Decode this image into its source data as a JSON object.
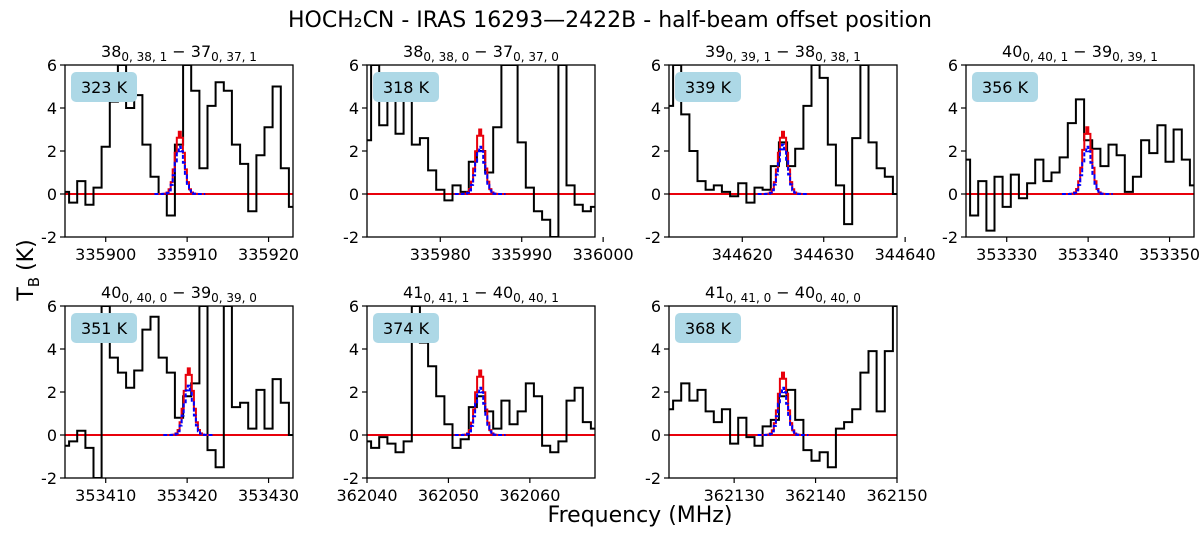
{
  "figure": {
    "title": "HOCH₂CN - IRAS 16293—2422B - half-beam offset position",
    "xlabel": "Frequency (MHz)",
    "ylabel": "T",
    "ylabel_sub": "B",
    "ylabel_unit": "(K)"
  },
  "colors": {
    "observed": "#000000",
    "model_red": "#e8000b",
    "model_blue": "#0000ff",
    "zero_line": "#e8000b",
    "badge": "#add8e6"
  },
  "chart_data": [
    {
      "type": "line",
      "transition": {
        "j_up": "38",
        "sub_up": "0, 38, 1",
        "j_lo": "37",
        "sub_lo": "0, 37, 1"
      },
      "energy_label": "323 K",
      "xlim": [
        335895,
        335923
      ],
      "ylim": [
        -2,
        6
      ],
      "xticks": [
        335900,
        335910,
        335920
      ],
      "yticks": [
        -2,
        0,
        2,
        4,
        6
      ],
      "center": 335909.1,
      "red_peak": 2.9,
      "blue_peak": 2.2,
      "observed": [
        [
          335895,
          0.1
        ],
        [
          335896,
          -0.4
        ],
        [
          335897,
          0.6
        ],
        [
          335898,
          -0.5
        ],
        [
          335899,
          0.3
        ],
        [
          335900,
          2.2
        ],
        [
          335901,
          4.3
        ],
        [
          335902,
          6.0
        ],
        [
          335903,
          4.0
        ],
        [
          335904,
          4.6
        ],
        [
          335905,
          2.3
        ],
        [
          335906,
          0.8
        ],
        [
          335907,
          0.0
        ],
        [
          335908,
          -1.0
        ],
        [
          335909,
          2.3
        ],
        [
          335910,
          6.0
        ],
        [
          335911,
          4.8
        ],
        [
          335912,
          1.2
        ],
        [
          335913,
          4.1
        ],
        [
          335914,
          5.2
        ],
        [
          335915,
          4.8
        ],
        [
          335916,
          2.3
        ],
        [
          335917,
          1.4
        ],
        [
          335918,
          -0.8
        ],
        [
          335919,
          1.8
        ],
        [
          335920,
          3.1
        ],
        [
          335921,
          5.0
        ],
        [
          335922,
          1.2
        ],
        [
          335923,
          -0.6
        ]
      ]
    },
    {
      "type": "line",
      "transition": {
        "j_up": "38",
        "sub_up": "0, 38, 0",
        "j_lo": "37",
        "sub_lo": "0, 37, 0"
      },
      "energy_label": "318 K",
      "xlim": [
        335971,
        335999
      ],
      "ylim": [
        -2,
        6
      ],
      "xticks": [
        335980,
        335990,
        336000
      ],
      "yticks": [
        -2,
        0,
        2,
        4,
        6
      ],
      "center": 335984.9,
      "red_peak": 3.0,
      "blue_peak": 2.2,
      "observed": [
        [
          335971,
          2.5
        ],
        [
          335972,
          6.0
        ],
        [
          335973,
          3.2
        ],
        [
          335974,
          4.5
        ],
        [
          335975,
          2.8
        ],
        [
          335976,
          4.6
        ],
        [
          335977,
          2.3
        ],
        [
          335978,
          2.6
        ],
        [
          335979,
          1.1
        ],
        [
          335980,
          0.2
        ],
        [
          335981,
          -0.3
        ],
        [
          335982,
          0.4
        ],
        [
          335983,
          0.1
        ],
        [
          335984,
          1.5
        ],
        [
          335985,
          2.0
        ],
        [
          335986,
          1.0
        ],
        [
          335987,
          3.1
        ],
        [
          335988,
          6.0
        ],
        [
          335989,
          6.0
        ],
        [
          335990,
          2.4
        ],
        [
          335991,
          0.3
        ],
        [
          335992,
          -0.8
        ],
        [
          335993,
          -1.2
        ],
        [
          335994,
          -2.0
        ],
        [
          335995,
          6.0
        ],
        [
          335996,
          0.4
        ],
        [
          335997,
          -0.5
        ],
        [
          335998,
          -0.8
        ],
        [
          335999,
          -0.6
        ]
      ]
    },
    {
      "type": "line",
      "transition": {
        "j_up": "39",
        "sub_up": "0, 39, 1",
        "j_lo": "38",
        "sub_lo": "0, 38, 1"
      },
      "energy_label": "339 K",
      "xlim": [
        344611,
        344639
      ],
      "ylim": [
        -2,
        6
      ],
      "xticks": [
        344620,
        344630,
        344640
      ],
      "yticks": [
        -2,
        0,
        2,
        4,
        6
      ],
      "center": 344625.0,
      "red_peak": 2.9,
      "blue_peak": 2.3,
      "observed": [
        [
          344611,
          4.1
        ],
        [
          344612,
          6.0
        ],
        [
          344613,
          3.7
        ],
        [
          344614,
          2.0
        ],
        [
          344615,
          0.6
        ],
        [
          344616,
          0.2
        ],
        [
          344617,
          0.4
        ],
        [
          344618,
          0.1
        ],
        [
          344619,
          -0.1
        ],
        [
          344620,
          0.5
        ],
        [
          344621,
          -0.4
        ],
        [
          344622,
          0.3
        ],
        [
          344623,
          0.2
        ],
        [
          344624,
          1.3
        ],
        [
          344625,
          2.4
        ],
        [
          344626,
          1.3
        ],
        [
          344627,
          2.1
        ],
        [
          344628,
          4.1
        ],
        [
          344629,
          6.0
        ],
        [
          344630,
          5.4
        ],
        [
          344631,
          2.3
        ],
        [
          344632,
          0.4
        ],
        [
          344633,
          -1.4
        ],
        [
          344634,
          2.6
        ],
        [
          344635,
          6.0
        ],
        [
          344636,
          2.4
        ],
        [
          344637,
          1.2
        ],
        [
          344638,
          0.8
        ],
        [
          344639,
          0.0
        ]
      ]
    },
    {
      "type": "line",
      "transition": {
        "j_up": "40",
        "sub_up": "0, 40, 1",
        "j_lo": "39",
        "sub_lo": "0, 39, 1"
      },
      "energy_label": "356 K",
      "xlim": [
        353325,
        353353
      ],
      "ylim": [
        -2,
        6
      ],
      "xticks": [
        353330,
        353340,
        353350
      ],
      "yticks": [
        -2,
        0,
        2,
        4,
        6
      ],
      "center": 353339.9,
      "red_peak": 3.1,
      "blue_peak": 2.2,
      "observed": [
        [
          353325,
          1.6
        ],
        [
          353326,
          -1.0
        ],
        [
          353327,
          0.6
        ],
        [
          353328,
          -1.7
        ],
        [
          353329,
          0.8
        ],
        [
          353330,
          -0.6
        ],
        [
          353331,
          0.9
        ],
        [
          353332,
          -0.2
        ],
        [
          353333,
          0.5
        ],
        [
          353334,
          1.6
        ],
        [
          353335,
          0.6
        ],
        [
          353336,
          1.0
        ],
        [
          353337,
          1.7
        ],
        [
          353338,
          3.3
        ],
        [
          353339,
          4.4
        ],
        [
          353340,
          2.5
        ],
        [
          353341,
          2.1
        ],
        [
          353342,
          1.3
        ],
        [
          353343,
          2.3
        ],
        [
          353344,
          1.8
        ],
        [
          353345,
          0.1
        ],
        [
          353346,
          0.8
        ],
        [
          353347,
          2.5
        ],
        [
          353348,
          1.9
        ],
        [
          353349,
          3.2
        ],
        [
          353350,
          1.5
        ],
        [
          353351,
          3.0
        ],
        [
          353352,
          1.6
        ],
        [
          353353,
          0.4
        ]
      ]
    },
    {
      "type": "line",
      "transition": {
        "j_up": "40",
        "sub_up": "0, 40, 0",
        "j_lo": "39",
        "sub_lo": "0, 39, 0"
      },
      "energy_label": "351 K",
      "xlim": [
        353405,
        353433
      ],
      "ylim": [
        -2,
        6
      ],
      "xticks": [
        353410,
        353420,
        353430
      ],
      "yticks": [
        -2,
        0,
        2,
        4,
        6
      ],
      "center": 353420.2,
      "red_peak": 3.1,
      "blue_peak": 2.3,
      "observed": [
        [
          353405,
          -0.5
        ],
        [
          353406,
          -0.3
        ],
        [
          353407,
          0.2
        ],
        [
          353408,
          -0.6
        ],
        [
          353409,
          -2.0
        ],
        [
          353410,
          6.0
        ],
        [
          353411,
          3.6
        ],
        [
          353412,
          2.9
        ],
        [
          353413,
          2.2
        ],
        [
          353414,
          3.0
        ],
        [
          353415,
          4.9
        ],
        [
          353416,
          5.5
        ],
        [
          353417,
          3.6
        ],
        [
          353418,
          2.9
        ],
        [
          353419,
          0.8
        ],
        [
          353420,
          1.8
        ],
        [
          353421,
          2.4
        ],
        [
          353422,
          6.0
        ],
        [
          353423,
          -0.7
        ],
        [
          353424,
          -1.5
        ],
        [
          353425,
          6.0
        ],
        [
          353426,
          1.3
        ],
        [
          353427,
          1.5
        ],
        [
          353428,
          0.3
        ],
        [
          353429,
          2.1
        ],
        [
          353430,
          0.3
        ],
        [
          353431,
          2.6
        ],
        [
          353432,
          1.5
        ],
        [
          353433,
          0.0
        ]
      ]
    },
    {
      "type": "line",
      "transition": {
        "j_up": "41",
        "sub_up": "0, 41, 1",
        "j_lo": "40",
        "sub_lo": "0, 40, 1"
      },
      "energy_label": "374 K",
      "xlim": [
        362040,
        362068
      ],
      "ylim": [
        -2,
        6
      ],
      "xticks": [
        362040,
        362050,
        362060
      ],
      "yticks": [
        -2,
        0,
        2,
        4,
        6
      ],
      "center": 362053.9,
      "red_peak": 3.0,
      "blue_peak": 2.2,
      "observed": [
        [
          362040,
          -0.3
        ],
        [
          362041,
          -0.6
        ],
        [
          362042,
          -0.1
        ],
        [
          362043,
          -0.4
        ],
        [
          362044,
          -0.8
        ],
        [
          362045,
          -0.3
        ],
        [
          362046,
          6.0
        ],
        [
          362047,
          4.3
        ],
        [
          362048,
          3.2
        ],
        [
          362049,
          1.8
        ],
        [
          362050,
          0.5
        ],
        [
          362051,
          -0.6
        ],
        [
          362052,
          -0.2
        ],
        [
          362053,
          1.3
        ],
        [
          362054,
          1.8
        ],
        [
          362055,
          1.1
        ],
        [
          362056,
          0.3
        ],
        [
          362057,
          1.6
        ],
        [
          362058,
          0.5
        ],
        [
          362059,
          1.1
        ],
        [
          362060,
          2.4
        ],
        [
          362061,
          1.8
        ],
        [
          362062,
          -0.5
        ],
        [
          362063,
          -0.8
        ],
        [
          362064,
          -0.3
        ],
        [
          362065,
          1.6
        ],
        [
          362066,
          2.2
        ],
        [
          362067,
          0.6
        ],
        [
          362068,
          0.3
        ]
      ]
    },
    {
      "type": "line",
      "transition": {
        "j_up": "41",
        "sub_up": "0, 41, 0",
        "j_lo": "40",
        "sub_lo": "0, 40, 0"
      },
      "energy_label": "368 K",
      "xlim": [
        362122,
        362150
      ],
      "ylim": [
        -2,
        6
      ],
      "xticks": [
        362130,
        362140,
        362150
      ],
      "yticks": [
        -2,
        0,
        2,
        4,
        6
      ],
      "center": 362136.0,
      "red_peak": 2.9,
      "blue_peak": 2.2,
      "observed": [
        [
          362122,
          1.2
        ],
        [
          362123,
          1.6
        ],
        [
          362124,
          2.4
        ],
        [
          362125,
          1.6
        ],
        [
          362126,
          2.1
        ],
        [
          362127,
          1.1
        ],
        [
          362128,
          0.6
        ],
        [
          362129,
          1.2
        ],
        [
          362130,
          -0.4
        ],
        [
          362131,
          0.8
        ],
        [
          362132,
          -0.1
        ],
        [
          362133,
          -0.5
        ],
        [
          362134,
          0.4
        ],
        [
          362135,
          0.7
        ],
        [
          362136,
          1.8
        ],
        [
          362137,
          2.1
        ],
        [
          362138,
          0.7
        ],
        [
          362139,
          -0.7
        ],
        [
          362140,
          -1.2
        ],
        [
          362141,
          -0.8
        ],
        [
          362142,
          -1.5
        ],
        [
          362143,
          0.3
        ],
        [
          362144,
          0.6
        ],
        [
          362145,
          1.2
        ],
        [
          362146,
          2.9
        ],
        [
          362147,
          3.9
        ],
        [
          362148,
          1.1
        ],
        [
          362149,
          3.9
        ],
        [
          362150,
          6.0
        ]
      ]
    }
  ]
}
